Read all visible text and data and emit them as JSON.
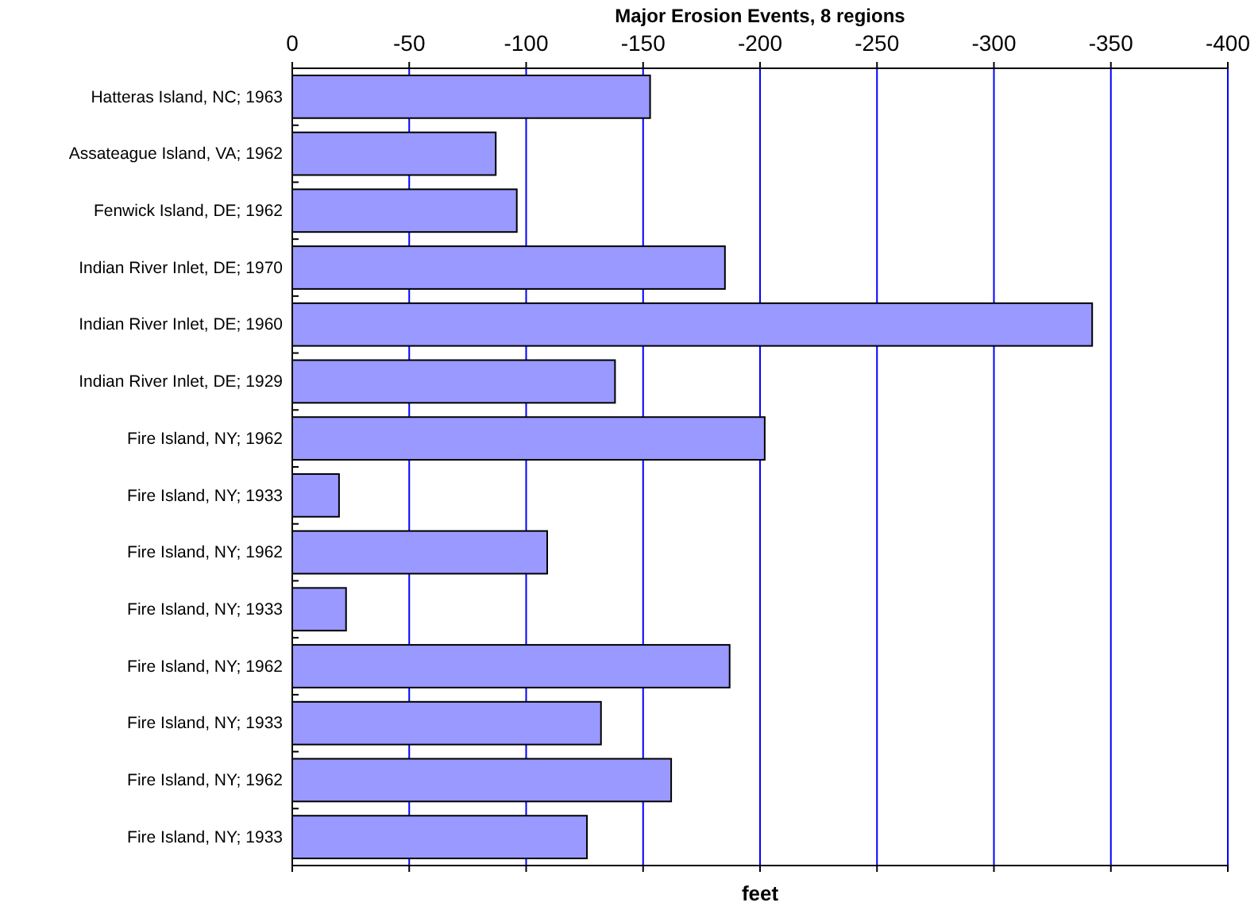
{
  "chart_data": {
    "type": "bar",
    "orientation": "horizontal",
    "title": "Major Erosion Events, 8 regions",
    "xlabel": "feet",
    "categories": [
      "Hatteras Island, NC; 1963",
      "Assateague Island, VA; 1962",
      "Fenwick Island, DE; 1962",
      "Indian River Inlet, DE; 1970",
      "Indian River Inlet, DE; 1960",
      "Indian River Inlet, DE; 1929",
      "Fire Island, NY; 1962",
      "Fire Island, NY; 1933",
      "Fire Island, NY; 1962",
      "Fire Island, NY; 1933",
      "Fire Island, NY; 1962",
      "Fire Island, NY; 1933",
      "Fire Island, NY; 1962",
      "Fire Island, NY; 1933"
    ],
    "values": [
      -153,
      -87,
      -96,
      -185,
      -342,
      -138,
      -202,
      -20,
      -109,
      -23,
      -187,
      -132,
      -162,
      -126
    ],
    "color": "#9999ff",
    "xlim": [
      0,
      -400
    ],
    "xticks": [
      0,
      -50,
      -100,
      -150,
      -200,
      -250,
      -300,
      -350,
      -400
    ],
    "grid": "x"
  }
}
